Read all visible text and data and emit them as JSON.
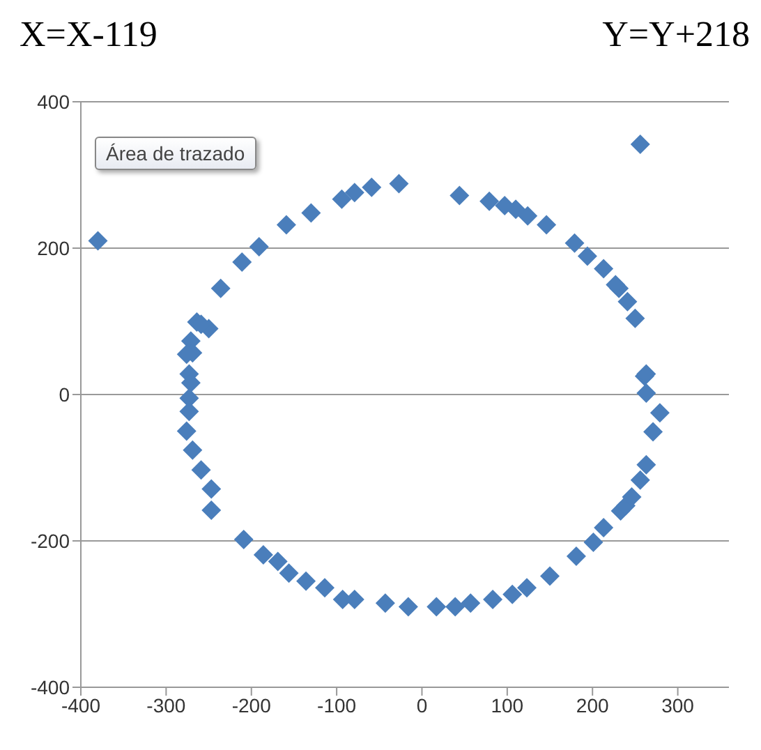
{
  "chart_data": {
    "type": "scatter",
    "annotations": [
      "X=X-119",
      "Y=Y+218",
      "Área de trazado"
    ],
    "x": [
      -380,
      -191,
      -211,
      -236,
      -264,
      -250,
      -259,
      -271,
      -269,
      -276,
      -273,
      -271,
      -273,
      -273,
      -276,
      -269,
      -259,
      -247,
      -247,
      -209,
      -186,
      -169,
      -156,
      -136,
      -114,
      -93,
      -79,
      -43,
      -16,
      17,
      39,
      57,
      83,
      106,
      123,
      150,
      181,
      201,
      213,
      233,
      239,
      246,
      256,
      263,
      271,
      279,
      263,
      261,
      263,
      250,
      241,
      231,
      227,
      213,
      194,
      179,
      146,
      124,
      110,
      97,
      79,
      44,
      256,
      -27,
      -59,
      -79,
      -94,
      -130,
      -159
    ],
    "series": [
      {
        "color": "#4a7ebb",
        "values": [
          210,
          202,
          181,
          145,
          99,
          90,
          96,
          73,
          57,
          55,
          28,
          16,
          -5,
          -23,
          -50,
          -76,
          -103,
          -129,
          -158,
          -198,
          -219,
          -228,
          -244,
          -255,
          -264,
          -280,
          -280,
          -285,
          -290,
          -290,
          -290,
          -285,
          -280,
          -273,
          -264,
          -248,
          -221,
          -202,
          -182,
          -159,
          -152,
          -140,
          -117,
          -96,
          -51,
          -25,
          2,
          25,
          28,
          104,
          127,
          145,
          150,
          172,
          189,
          207,
          232,
          244,
          253,
          258,
          264,
          272,
          342,
          288,
          283,
          276,
          267,
          248,
          232
        ]
      }
    ],
    "xlim": [
      -400,
      360
    ],
    "xticks": [
      -400,
      -300,
      -200,
      -100,
      0,
      100,
      200,
      300
    ],
    "ylim": [
      -400,
      400
    ],
    "yticks": [
      -400,
      -200,
      0,
      200,
      400
    ],
    "grid": "y",
    "marker": "diamond"
  }
}
